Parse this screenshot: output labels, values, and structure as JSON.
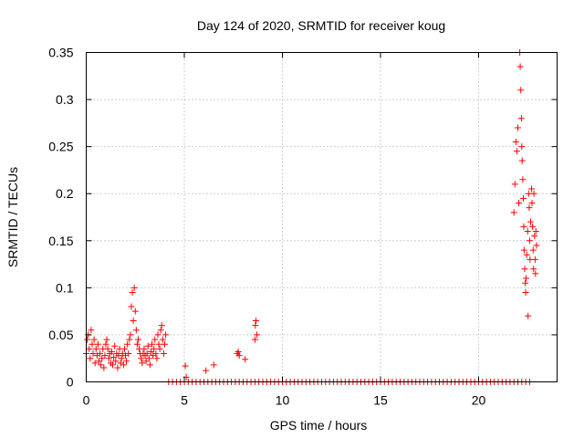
{
  "chart_data": {
    "type": "scatter",
    "title": "Day 124 of 2020, SRMTID for receiver koug",
    "xlabel": "GPS time / hours",
    "ylabel": "SRMTID / TECUs",
    "xlim": [
      0,
      24
    ],
    "ylim": [
      0,
      0.35
    ],
    "xticks": [
      0,
      5,
      10,
      15,
      20
    ],
    "yticks": [
      0,
      0.05,
      0.1,
      0.15,
      0.2,
      0.25,
      0.3,
      0.35
    ],
    "xtick_labels": [
      "0",
      "5",
      "10",
      "15",
      "20"
    ],
    "ytick_labels": [
      "0",
      "0.05",
      "0.1",
      "0.15",
      "0.2",
      "0.25",
      "0.3",
      "0.35"
    ],
    "grid": true,
    "marker": "+",
    "marker_color": "#ff0000",
    "series": [
      {
        "name": "SRMTID",
        "points": [
          [
            0.0,
            0.03
          ],
          [
            0.05,
            0.045
          ],
          [
            0.1,
            0.05
          ],
          [
            0.15,
            0.035
          ],
          [
            0.2,
            0.025
          ],
          [
            0.25,
            0.055
          ],
          [
            0.3,
            0.04
          ],
          [
            0.35,
            0.03
          ],
          [
            0.4,
            0.045
          ],
          [
            0.45,
            0.02
          ],
          [
            0.5,
            0.035
          ],
          [
            0.55,
            0.028
          ],
          [
            0.6,
            0.04
          ],
          [
            0.65,
            0.022
          ],
          [
            0.7,
            0.03
          ],
          [
            0.75,
            0.018
          ],
          [
            0.8,
            0.025
          ],
          [
            0.85,
            0.035
          ],
          [
            0.9,
            0.015
          ],
          [
            0.95,
            0.028
          ],
          [
            1.0,
            0.04
          ],
          [
            1.05,
            0.045
          ],
          [
            1.1,
            0.035
          ],
          [
            1.15,
            0.025
          ],
          [
            1.2,
            0.03
          ],
          [
            1.25,
            0.02
          ],
          [
            1.3,
            0.032
          ],
          [
            1.35,
            0.018
          ],
          [
            1.4,
            0.026
          ],
          [
            1.45,
            0.038
          ],
          [
            1.5,
            0.022
          ],
          [
            1.55,
            0.03
          ],
          [
            1.6,
            0.015
          ],
          [
            1.65,
            0.028
          ],
          [
            1.7,
            0.035
          ],
          [
            1.75,
            0.02
          ],
          [
            1.8,
            0.025
          ],
          [
            1.85,
            0.03
          ],
          [
            1.9,
            0.018
          ],
          [
            1.95,
            0.035
          ],
          [
            2.0,
            0.028
          ],
          [
            2.05,
            0.022
          ],
          [
            2.1,
            0.04
          ],
          [
            2.15,
            0.03
          ],
          [
            2.2,
            0.045
          ],
          [
            2.25,
            0.05
          ],
          [
            2.3,
            0.08
          ],
          [
            2.35,
            0.095
          ],
          [
            2.4,
            0.065
          ],
          [
            2.45,
            0.1
          ],
          [
            2.5,
            0.075
          ],
          [
            2.55,
            0.055
          ],
          [
            2.6,
            0.04
          ],
          [
            2.65,
            0.045
          ],
          [
            2.7,
            0.035
          ],
          [
            2.75,
            0.03
          ],
          [
            2.8,
            0.025
          ],
          [
            2.85,
            0.02
          ],
          [
            2.9,
            0.03
          ],
          [
            2.95,
            0.035
          ],
          [
            3.0,
            0.028
          ],
          [
            3.05,
            0.022
          ],
          [
            3.1,
            0.03
          ],
          [
            3.15,
            0.038
          ],
          [
            3.2,
            0.025
          ],
          [
            3.25,
            0.018
          ],
          [
            3.3,
            0.032
          ],
          [
            3.35,
            0.04
          ],
          [
            3.4,
            0.028
          ],
          [
            3.45,
            0.035
          ],
          [
            3.5,
            0.045
          ],
          [
            3.55,
            0.03
          ],
          [
            3.6,
            0.025
          ],
          [
            3.65,
            0.05
          ],
          [
            3.7,
            0.04
          ],
          [
            3.75,
            0.035
          ],
          [
            3.8,
            0.055
          ],
          [
            3.85,
            0.06
          ],
          [
            3.9,
            0.045
          ],
          [
            3.95,
            0.03
          ],
          [
            4.0,
            0.04
          ],
          [
            4.05,
            0.05
          ],
          [
            4.2,
            0
          ],
          [
            4.4,
            0
          ],
          [
            4.6,
            0
          ],
          [
            4.8,
            0
          ],
          [
            5.0,
            0
          ],
          [
            5.1,
            0.005
          ],
          [
            5.05,
            0.017
          ],
          [
            5.2,
            0
          ],
          [
            5.4,
            0
          ],
          [
            5.6,
            0
          ],
          [
            5.8,
            0
          ],
          [
            6.0,
            0
          ],
          [
            6.1,
            0.012
          ],
          [
            6.2,
            0
          ],
          [
            6.4,
            0
          ],
          [
            6.5,
            0.018
          ],
          [
            6.6,
            0
          ],
          [
            6.8,
            0
          ],
          [
            7.0,
            0
          ],
          [
            7.2,
            0
          ],
          [
            7.4,
            0
          ],
          [
            7.6,
            0
          ],
          [
            7.7,
            0.03
          ],
          [
            7.75,
            0.032
          ],
          [
            7.8,
            0.028
          ],
          [
            7.8,
            0
          ],
          [
            8.0,
            0
          ],
          [
            8.1,
            0.024
          ],
          [
            8.2,
            0
          ],
          [
            8.4,
            0
          ],
          [
            8.6,
            0.045
          ],
          [
            8.62,
            0.06
          ],
          [
            8.65,
            0.065
          ],
          [
            8.7,
            0.05
          ],
          [
            8.6,
            0
          ],
          [
            8.8,
            0
          ],
          [
            9.0,
            0
          ],
          [
            9.2,
            0
          ],
          [
            9.4,
            0
          ],
          [
            9.6,
            0
          ],
          [
            9.8,
            0
          ],
          [
            10.0,
            0
          ],
          [
            10.2,
            0
          ],
          [
            10.4,
            0
          ],
          [
            10.6,
            0
          ],
          [
            10.8,
            0
          ],
          [
            11.0,
            0
          ],
          [
            11.2,
            0
          ],
          [
            11.4,
            0
          ],
          [
            11.6,
            0
          ],
          [
            11.8,
            0
          ],
          [
            12.0,
            0
          ],
          [
            12.2,
            0
          ],
          [
            12.4,
            0
          ],
          [
            12.6,
            0
          ],
          [
            12.8,
            0
          ],
          [
            13.0,
            0
          ],
          [
            13.2,
            0
          ],
          [
            13.4,
            0
          ],
          [
            13.6,
            0
          ],
          [
            13.8,
            0
          ],
          [
            14.0,
            0
          ],
          [
            14.2,
            0
          ],
          [
            14.4,
            0
          ],
          [
            14.6,
            0
          ],
          [
            14.8,
            0
          ],
          [
            15.0,
            0
          ],
          [
            15.2,
            0
          ],
          [
            15.4,
            0
          ],
          [
            15.6,
            0
          ],
          [
            15.8,
            0
          ],
          [
            16.0,
            0
          ],
          [
            16.2,
            0
          ],
          [
            16.4,
            0
          ],
          [
            16.6,
            0
          ],
          [
            16.8,
            0
          ],
          [
            17.0,
            0
          ],
          [
            17.2,
            0
          ],
          [
            17.4,
            0
          ],
          [
            17.6,
            0
          ],
          [
            17.8,
            0
          ],
          [
            18.0,
            0
          ],
          [
            18.2,
            0
          ],
          [
            18.4,
            0
          ],
          [
            18.6,
            0
          ],
          [
            18.8,
            0
          ],
          [
            19.0,
            0
          ],
          [
            19.2,
            0
          ],
          [
            19.4,
            0
          ],
          [
            19.6,
            0
          ],
          [
            19.8,
            0
          ],
          [
            20.0,
            0
          ],
          [
            20.2,
            0
          ],
          [
            20.4,
            0
          ],
          [
            20.6,
            0
          ],
          [
            20.8,
            0
          ],
          [
            21.0,
            0
          ],
          [
            21.2,
            0
          ],
          [
            21.4,
            0
          ],
          [
            21.6,
            0
          ],
          [
            21.8,
            0
          ],
          [
            22.0,
            0
          ],
          [
            22.2,
            0
          ],
          [
            22.4,
            0
          ],
          [
            22.6,
            0
          ],
          [
            21.8,
            0.18
          ],
          [
            21.85,
            0.21
          ],
          [
            21.9,
            0.255
          ],
          [
            21.95,
            0.245
          ],
          [
            22.0,
            0.27
          ],
          [
            22.05,
            0.19
          ],
          [
            22.1,
            0.35
          ],
          [
            22.12,
            0.335
          ],
          [
            22.15,
            0.31
          ],
          [
            22.18,
            0.28
          ],
          [
            22.2,
            0.25
          ],
          [
            22.22,
            0.235
          ],
          [
            22.25,
            0.215
          ],
          [
            22.28,
            0.195
          ],
          [
            22.3,
            0.165
          ],
          [
            22.32,
            0.14
          ],
          [
            22.35,
            0.12
          ],
          [
            22.38,
            0.105
          ],
          [
            22.4,
            0.095
          ],
          [
            22.42,
            0.11
          ],
          [
            22.45,
            0.135
          ],
          [
            22.5,
            0.16
          ],
          [
            22.52,
            0.07
          ],
          [
            22.55,
            0.2
          ],
          [
            22.58,
            0.185
          ],
          [
            22.6,
            0.15
          ],
          [
            22.62,
            0.13
          ],
          [
            22.65,
            0.17
          ],
          [
            22.7,
            0.205
          ],
          [
            22.72,
            0.19
          ],
          [
            22.75,
            0.165
          ],
          [
            22.78,
            0.14
          ],
          [
            22.8,
            0.12
          ],
          [
            22.82,
            0.2
          ],
          [
            22.85,
            0.155
          ],
          [
            22.88,
            0.13
          ],
          [
            22.9,
            0.115
          ],
          [
            22.92,
            0.16
          ],
          [
            22.95,
            0.145
          ]
        ]
      }
    ]
  }
}
